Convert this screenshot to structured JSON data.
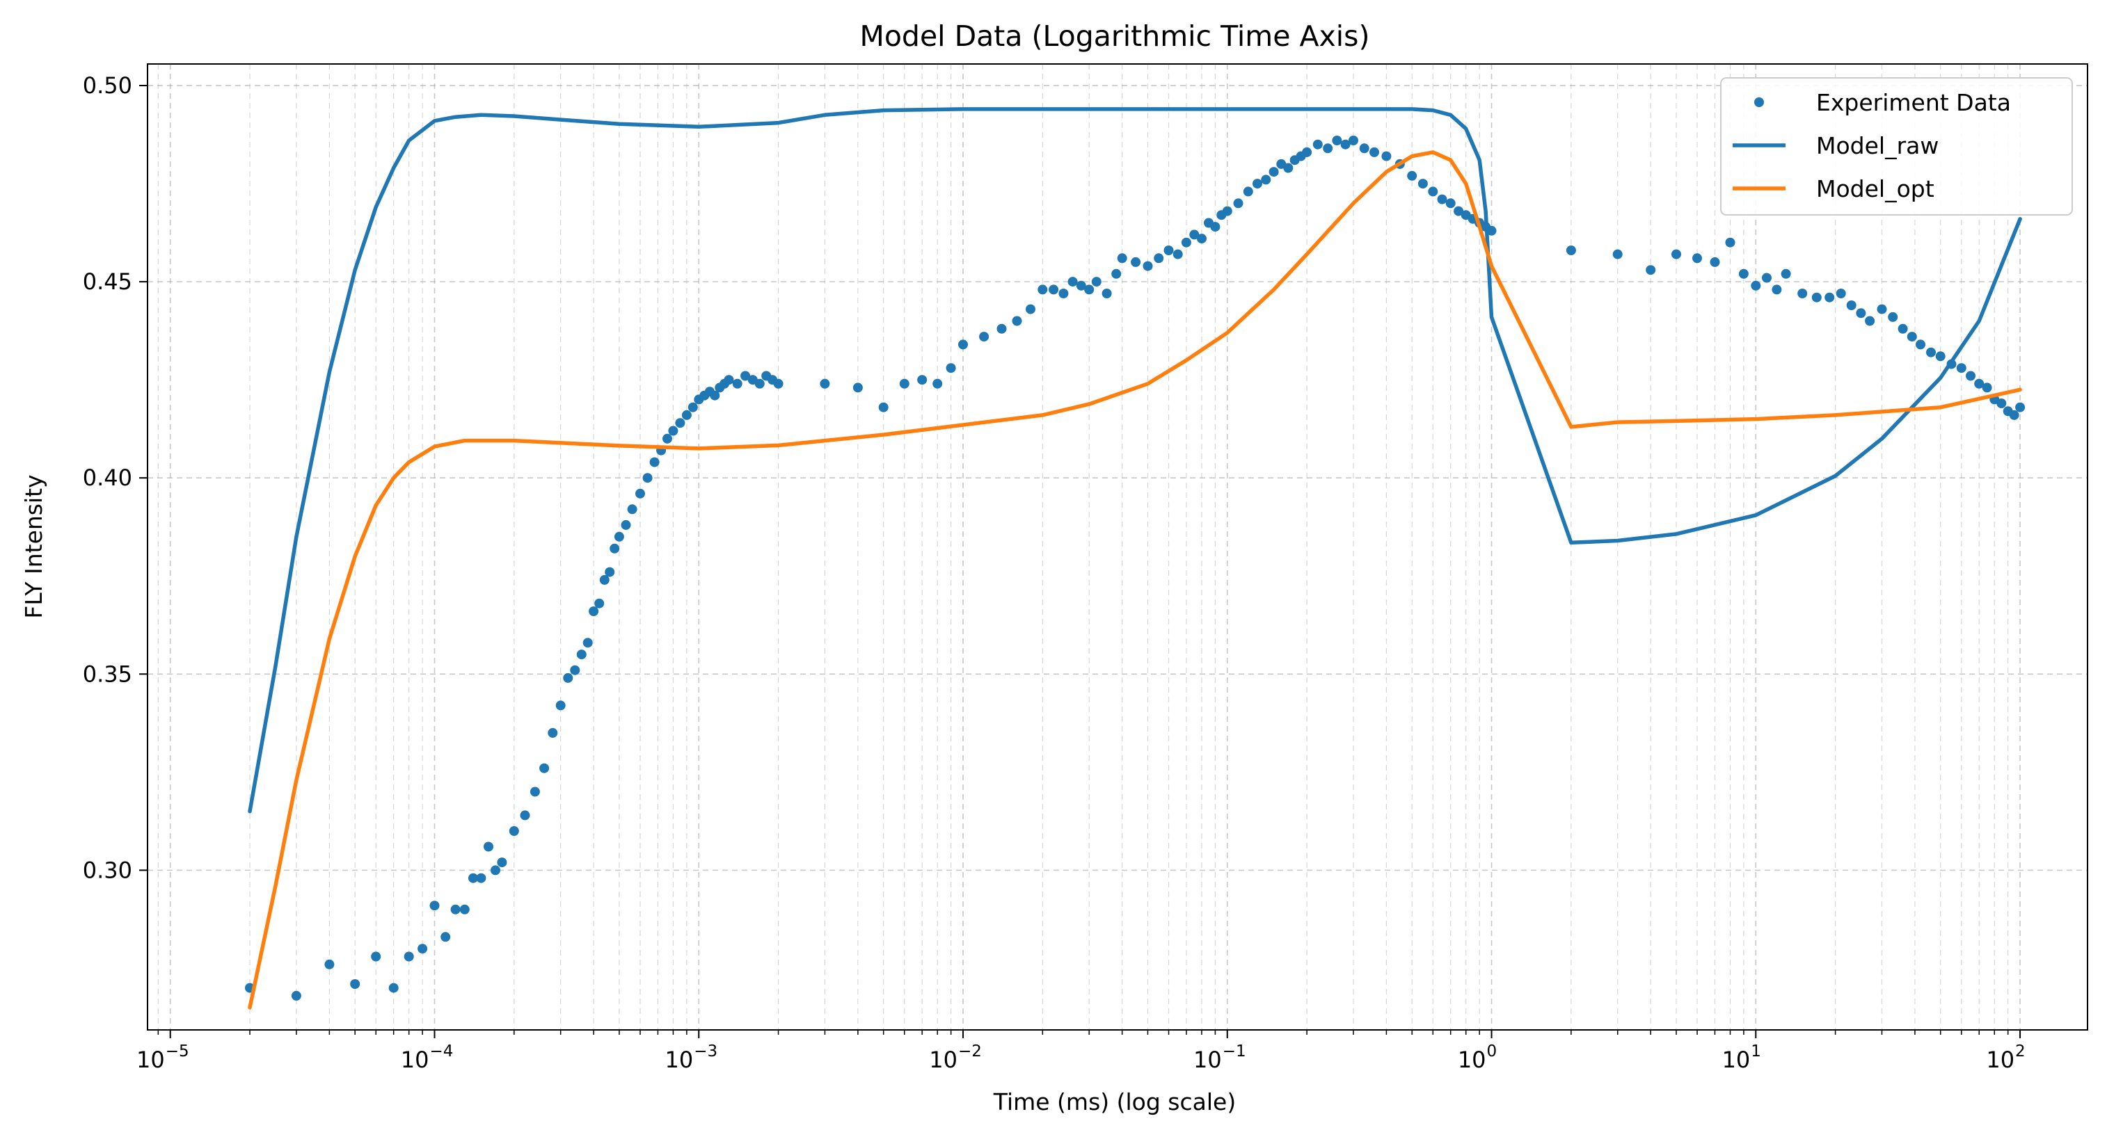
{
  "chart_data": {
    "type": "scatter+line",
    "title": "Model Data (Logarithmic Time Axis)",
    "xlabel": "Time (ms) (log scale)",
    "ylabel": "FLY Intensity",
    "x_scale": "log",
    "xlim": [
      8.2e-06,
      180
    ],
    "ylim": [
      0.2593,
      0.5055
    ],
    "x_ticks": [
      {
        "value": 1e-05,
        "base": "10",
        "exp": "−5"
      },
      {
        "value": 0.0001,
        "base": "10",
        "exp": "−4"
      },
      {
        "value": 0.001,
        "base": "10",
        "exp": "−3"
      },
      {
        "value": 0.01,
        "base": "10",
        "exp": "−2"
      },
      {
        "value": 0.1,
        "base": "10",
        "exp": "−1"
      },
      {
        "value": 1,
        "base": "10",
        "exp": "0"
      },
      {
        "value": 10,
        "base": "10",
        "exp": "1"
      },
      {
        "value": 100,
        "base": "10",
        "exp": "2"
      }
    ],
    "y_ticks": [
      {
        "value": 0.3,
        "label": "0.30"
      },
      {
        "value": 0.35,
        "label": "0.35"
      },
      {
        "value": 0.4,
        "label": "0.40"
      },
      {
        "value": 0.45,
        "label": "0.45"
      },
      {
        "value": 0.5,
        "label": "0.50"
      }
    ],
    "grid": true,
    "legend_position": "top-right",
    "legend": [
      {
        "label": "Experiment Data",
        "kind": "marker",
        "color": "#1f77b4"
      },
      {
        "label": "Model_raw",
        "kind": "line",
        "color": "#1f77b4"
      },
      {
        "label": "Model_opt",
        "kind": "line",
        "color": "#ff7f0e"
      }
    ],
    "series": [
      {
        "name": "Experiment Data",
        "kind": "scatter",
        "color": "#1f77b4",
        "points": [
          [
            2e-05,
            0.27
          ],
          [
            3e-05,
            0.268
          ],
          [
            4e-05,
            0.276
          ],
          [
            5e-05,
            0.271
          ],
          [
            6e-05,
            0.278
          ],
          [
            7e-05,
            0.27
          ],
          [
            8e-05,
            0.278
          ],
          [
            9e-05,
            0.28
          ],
          [
            0.0001,
            0.291
          ],
          [
            0.00011,
            0.283
          ],
          [
            0.00012,
            0.29
          ],
          [
            0.00013,
            0.29
          ],
          [
            0.00014,
            0.298
          ],
          [
            0.00015,
            0.298
          ],
          [
            0.00016,
            0.306
          ],
          [
            0.00017,
            0.3
          ],
          [
            0.00018,
            0.302
          ],
          [
            0.0002,
            0.31
          ],
          [
            0.00022,
            0.314
          ],
          [
            0.00024,
            0.32
          ],
          [
            0.00026,
            0.326
          ],
          [
            0.00028,
            0.335
          ],
          [
            0.0003,
            0.342
          ],
          [
            0.00032,
            0.349
          ],
          [
            0.00034,
            0.351
          ],
          [
            0.00036,
            0.355
          ],
          [
            0.00038,
            0.358
          ],
          [
            0.0004,
            0.366
          ],
          [
            0.00042,
            0.368
          ],
          [
            0.00044,
            0.374
          ],
          [
            0.00046,
            0.376
          ],
          [
            0.00048,
            0.382
          ],
          [
            0.0005,
            0.385
          ],
          [
            0.00053,
            0.388
          ],
          [
            0.00056,
            0.392
          ],
          [
            0.0006,
            0.396
          ],
          [
            0.00064,
            0.4
          ],
          [
            0.00068,
            0.404
          ],
          [
            0.00072,
            0.407
          ],
          [
            0.00076,
            0.41
          ],
          [
            0.0008,
            0.412
          ],
          [
            0.00085,
            0.414
          ],
          [
            0.0009,
            0.416
          ],
          [
            0.00095,
            0.418
          ],
          [
            0.001,
            0.42
          ],
          [
            0.00105,
            0.421
          ],
          [
            0.0011,
            0.422
          ],
          [
            0.00115,
            0.421
          ],
          [
            0.0012,
            0.423
          ],
          [
            0.00125,
            0.424
          ],
          [
            0.0013,
            0.425
          ],
          [
            0.0014,
            0.424
          ],
          [
            0.0015,
            0.426
          ],
          [
            0.0016,
            0.425
          ],
          [
            0.0017,
            0.424
          ],
          [
            0.0018,
            0.426
          ],
          [
            0.0019,
            0.425
          ],
          [
            0.002,
            0.424
          ],
          [
            0.003,
            0.424
          ],
          [
            0.004,
            0.423
          ],
          [
            0.005,
            0.418
          ],
          [
            0.006,
            0.424
          ],
          [
            0.007,
            0.425
          ],
          [
            0.008,
            0.424
          ],
          [
            0.009,
            0.428
          ],
          [
            0.01,
            0.434
          ],
          [
            0.012,
            0.436
          ],
          [
            0.014,
            0.438
          ],
          [
            0.016,
            0.44
          ],
          [
            0.018,
            0.443
          ],
          [
            0.02,
            0.448
          ],
          [
            0.022,
            0.448
          ],
          [
            0.024,
            0.447
          ],
          [
            0.026,
            0.45
          ],
          [
            0.028,
            0.449
          ],
          [
            0.03,
            0.448
          ],
          [
            0.032,
            0.45
          ],
          [
            0.035,
            0.447
          ],
          [
            0.038,
            0.452
          ],
          [
            0.04,
            0.456
          ],
          [
            0.045,
            0.455
          ],
          [
            0.05,
            0.454
          ],
          [
            0.055,
            0.456
          ],
          [
            0.06,
            0.458
          ],
          [
            0.065,
            0.457
          ],
          [
            0.07,
            0.46
          ],
          [
            0.075,
            0.462
          ],
          [
            0.08,
            0.461
          ],
          [
            0.085,
            0.465
          ],
          [
            0.09,
            0.464
          ],
          [
            0.095,
            0.467
          ],
          [
            0.1,
            0.468
          ],
          [
            0.11,
            0.47
          ],
          [
            0.12,
            0.473
          ],
          [
            0.13,
            0.475
          ],
          [
            0.14,
            0.476
          ],
          [
            0.15,
            0.478
          ],
          [
            0.16,
            0.48
          ],
          [
            0.17,
            0.479
          ],
          [
            0.18,
            0.481
          ],
          [
            0.19,
            0.482
          ],
          [
            0.2,
            0.483
          ],
          [
            0.22,
            0.485
          ],
          [
            0.24,
            0.484
          ],
          [
            0.26,
            0.486
          ],
          [
            0.28,
            0.485
          ],
          [
            0.3,
            0.486
          ],
          [
            0.33,
            0.484
          ],
          [
            0.36,
            0.483
          ],
          [
            0.4,
            0.482
          ],
          [
            0.45,
            0.48
          ],
          [
            0.5,
            0.477
          ],
          [
            0.55,
            0.475
          ],
          [
            0.6,
            0.473
          ],
          [
            0.65,
            0.471
          ],
          [
            0.7,
            0.47
          ],
          [
            0.75,
            0.468
          ],
          [
            0.8,
            0.467
          ],
          [
            0.85,
            0.466
          ],
          [
            0.9,
            0.465
          ],
          [
            0.95,
            0.464
          ],
          [
            1.0,
            0.463
          ],
          [
            2,
            0.458
          ],
          [
            3,
            0.457
          ],
          [
            4,
            0.453
          ],
          [
            5,
            0.457
          ],
          [
            6,
            0.456
          ],
          [
            7,
            0.455
          ],
          [
            8,
            0.46
          ],
          [
            9,
            0.452
          ],
          [
            10,
            0.449
          ],
          [
            11,
            0.451
          ],
          [
            12,
            0.448
          ],
          [
            13,
            0.452
          ],
          [
            15,
            0.447
          ],
          [
            17,
            0.446
          ],
          [
            19,
            0.446
          ],
          [
            21,
            0.447
          ],
          [
            23,
            0.444
          ],
          [
            25,
            0.442
          ],
          [
            27,
            0.44
          ],
          [
            30,
            0.443
          ],
          [
            33,
            0.441
          ],
          [
            36,
            0.438
          ],
          [
            39,
            0.436
          ],
          [
            42,
            0.434
          ],
          [
            46,
            0.432
          ],
          [
            50,
            0.431
          ],
          [
            55,
            0.429
          ],
          [
            60,
            0.428
          ],
          [
            65,
            0.426
          ],
          [
            70,
            0.424
          ],
          [
            75,
            0.423
          ],
          [
            80,
            0.42
          ],
          [
            85,
            0.419
          ],
          [
            90,
            0.417
          ],
          [
            95,
            0.416
          ],
          [
            100,
            0.418
          ]
        ]
      },
      {
        "name": "Model_raw",
        "kind": "line",
        "color": "#1f77b4",
        "points": [
          [
            2e-05,
            0.315
          ],
          [
            2.5e-05,
            0.352
          ],
          [
            3e-05,
            0.385
          ],
          [
            4e-05,
            0.427
          ],
          [
            5e-05,
            0.453
          ],
          [
            6e-05,
            0.469
          ],
          [
            7e-05,
            0.479
          ],
          [
            8e-05,
            0.486
          ],
          [
            0.0001,
            0.491
          ],
          [
            0.00012,
            0.492
          ],
          [
            0.00015,
            0.4925
          ],
          [
            0.0002,
            0.4922
          ],
          [
            0.0003,
            0.4913
          ],
          [
            0.0005,
            0.4902
          ],
          [
            0.001,
            0.4895
          ],
          [
            0.002,
            0.4905
          ],
          [
            0.003,
            0.4925
          ],
          [
            0.005,
            0.4937
          ],
          [
            0.01,
            0.494
          ],
          [
            0.1,
            0.494
          ],
          [
            0.5,
            0.494
          ],
          [
            0.6,
            0.4937
          ],
          [
            0.7,
            0.4925
          ],
          [
            0.8,
            0.489
          ],
          [
            0.9,
            0.481
          ],
          [
            0.95,
            0.468
          ],
          [
            1.0,
            0.441
          ],
          [
            2,
            0.3835
          ],
          [
            3,
            0.384
          ],
          [
            5,
            0.3857
          ],
          [
            10,
            0.3905
          ],
          [
            20,
            0.4005
          ],
          [
            30,
            0.41
          ],
          [
            50,
            0.4255
          ],
          [
            70,
            0.44
          ],
          [
            100,
            0.466
          ]
        ]
      },
      {
        "name": "Model_opt",
        "kind": "line",
        "color": "#ff7f0e",
        "points": [
          [
            2e-05,
            0.265
          ],
          [
            2.5e-05,
            0.296
          ],
          [
            3e-05,
            0.323
          ],
          [
            4e-05,
            0.359
          ],
          [
            5e-05,
            0.38
          ],
          [
            6e-05,
            0.393
          ],
          [
            7e-05,
            0.4
          ],
          [
            8e-05,
            0.404
          ],
          [
            0.0001,
            0.408
          ],
          [
            0.00013,
            0.4095
          ],
          [
            0.0002,
            0.4095
          ],
          [
            0.0005,
            0.4082
          ],
          [
            0.001,
            0.4075
          ],
          [
            0.002,
            0.4083
          ],
          [
            0.005,
            0.411
          ],
          [
            0.01,
            0.4135
          ],
          [
            0.02,
            0.416
          ],
          [
            0.03,
            0.4188
          ],
          [
            0.05,
            0.424
          ],
          [
            0.07,
            0.43
          ],
          [
            0.1,
            0.437
          ],
          [
            0.15,
            0.448
          ],
          [
            0.2,
            0.457
          ],
          [
            0.3,
            0.47
          ],
          [
            0.4,
            0.478
          ],
          [
            0.5,
            0.482
          ],
          [
            0.6,
            0.483
          ],
          [
            0.7,
            0.481
          ],
          [
            0.8,
            0.475
          ],
          [
            0.9,
            0.464
          ],
          [
            1.0,
            0.454
          ],
          [
            2,
            0.413
          ],
          [
            3,
            0.4142
          ],
          [
            5,
            0.4145
          ],
          [
            10,
            0.415
          ],
          [
            20,
            0.416
          ],
          [
            50,
            0.418
          ],
          [
            100,
            0.4225
          ]
        ]
      }
    ]
  }
}
